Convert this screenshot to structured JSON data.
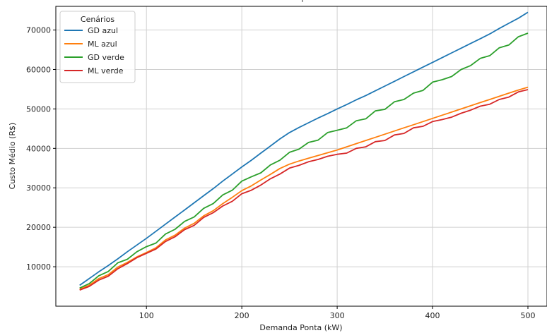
{
  "chart_data": {
    "type": "line",
    "title": "",
    "xlabel": "Demanda Ponta (kW)",
    "ylabel": "Custo Médio (R$)",
    "xlim": [
      5,
      520
    ],
    "ylim": [
      0,
      76000
    ],
    "xticks": [
      100,
      200,
      300,
      400,
      500
    ],
    "yticks": [
      10000,
      20000,
      30000,
      40000,
      50000,
      60000,
      70000
    ],
    "grid": true,
    "legend": {
      "title": "Cenários",
      "placement": "top-left"
    },
    "x": [
      30,
      40,
      50,
      60,
      70,
      80,
      90,
      100,
      110,
      120,
      130,
      140,
      150,
      160,
      170,
      180,
      190,
      200,
      210,
      220,
      230,
      240,
      250,
      260,
      270,
      280,
      290,
      300,
      310,
      320,
      330,
      340,
      350,
      360,
      370,
      380,
      390,
      400,
      410,
      420,
      430,
      440,
      450,
      460,
      470,
      480,
      490,
      500
    ],
    "series": [
      {
        "name": "GD azul",
        "color": "#1f77b4",
        "values": [
          5300,
          7000,
          8700,
          10300,
          12000,
          13800,
          15500,
          17200,
          19000,
          20800,
          22600,
          24400,
          26200,
          28000,
          29800,
          31700,
          33500,
          35300,
          37000,
          38800,
          40600,
          42400,
          44000,
          45300,
          46500,
          47700,
          48800,
          50000,
          51100,
          52300,
          53400,
          54600,
          55800,
          57000,
          58200,
          59400,
          60600,
          61800,
          63000,
          64200,
          65400,
          66600,
          67800,
          69000,
          70400,
          71700,
          73000,
          74500
        ]
      },
      {
        "name": "ML azul",
        "color": "#ff7f0e",
        "values": [
          4300,
          5300,
          7000,
          8000,
          9900,
          11100,
          12500,
          13600,
          14800,
          16800,
          18000,
          19800,
          21000,
          22900,
          24200,
          26000,
          27600,
          29300,
          30500,
          32000,
          33400,
          34900,
          36000,
          36800,
          37500,
          38200,
          38900,
          39600,
          40400,
          41200,
          42000,
          42800,
          43600,
          44400,
          45200,
          46000,
          46800,
          47600,
          48400,
          49200,
          50000,
          50800,
          51600,
          52400,
          53200,
          54000,
          54800,
          55500
        ]
      },
      {
        "name": "GD verde",
        "color": "#2ca02c",
        "values": [
          4600,
          5700,
          7700,
          8800,
          11000,
          11900,
          13800,
          15100,
          16000,
          18300,
          19500,
          21500,
          22600,
          24800,
          26000,
          28200,
          29400,
          31700,
          32800,
          33800,
          35800,
          37000,
          39000,
          39800,
          41500,
          42100,
          44000,
          44600,
          45200,
          47000,
          47500,
          49500,
          49900,
          51800,
          52400,
          54000,
          54700,
          56800,
          57400,
          58200,
          60000,
          61000,
          62800,
          63500,
          65500,
          66200,
          68300,
          69200
        ]
      },
      {
        "name": "ML verde",
        "color": "#d62728",
        "values": [
          4100,
          5000,
          6600,
          7600,
          9500,
          10800,
          12300,
          13400,
          14500,
          16400,
          17600,
          19400,
          20500,
          22500,
          23700,
          25400,
          26600,
          28500,
          29400,
          30700,
          32300,
          33500,
          35000,
          35700,
          36600,
          37200,
          38000,
          38500,
          38800,
          40000,
          40400,
          41700,
          42000,
          43400,
          43800,
          45200,
          45600,
          46800,
          47300,
          47900,
          48900,
          49700,
          50700,
          51200,
          52400,
          53000,
          54300,
          54900
        ]
      }
    ],
    "annotation": "'"
  }
}
